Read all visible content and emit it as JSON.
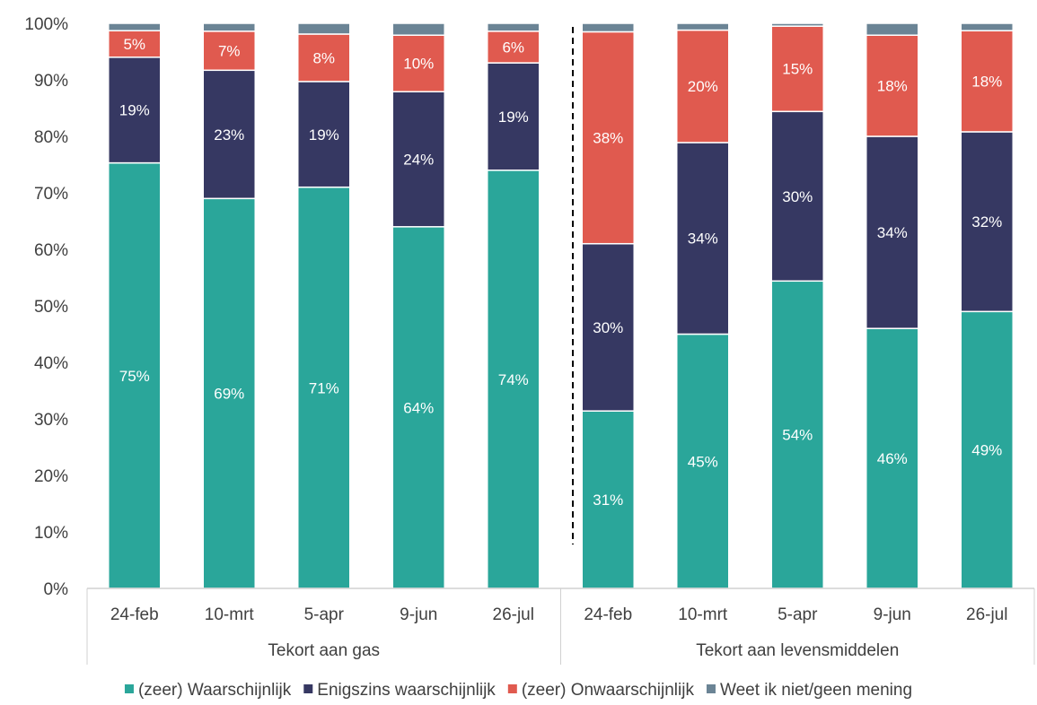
{
  "chart_data": {
    "type": "bar",
    "stacked": true,
    "ylim": [
      0,
      100
    ],
    "yticks": [
      0,
      10,
      20,
      30,
      40,
      50,
      60,
      70,
      80,
      90,
      100
    ],
    "ytick_labels": [
      "0%",
      "10%",
      "20%",
      "30%",
      "40%",
      "50%",
      "60%",
      "70%",
      "80%",
      "90%",
      "100%"
    ],
    "grid": false,
    "legend_position": "bottom",
    "groups": [
      {
        "label": "Tekort aan gas",
        "categories": [
          "24-feb",
          "10-mrt",
          "5-apr",
          "9-jun",
          "26-jul"
        ],
        "series": [
          {
            "values": [
              75.3,
              69,
              71,
              64,
              74
            ]
          },
          {
            "values": [
              18.7,
              22.7,
              18.7,
              23.9,
              19
            ]
          },
          {
            "values": [
              4.7,
              6.9,
              8.4,
              10,
              5.6
            ]
          },
          {
            "values": [
              1.3,
              1.4,
              1.9,
              2.1,
              1.4
            ]
          }
        ],
        "labels": [
          [
            "75%",
            "69%",
            "71%",
            "64%",
            "74%"
          ],
          [
            "19%",
            "23%",
            "19%",
            "24%",
            "19%"
          ],
          [
            "5%",
            "7%",
            "8%",
            "10%",
            "6%"
          ],
          [
            "",
            "",
            "",
            "",
            ""
          ]
        ]
      },
      {
        "label": "Tekort aan levensmiddelen",
        "categories": [
          "24-feb",
          "10-mrt",
          "5-apr",
          "9-jun",
          "26-jul"
        ],
        "series": [
          {
            "values": [
              31.4,
              45,
              54.4,
              46,
              49
            ]
          },
          {
            "values": [
              29.6,
              33.9,
              30,
              34,
              31.8
            ]
          },
          {
            "values": [
              37.5,
              19.9,
              15.1,
              17.9,
              17.9
            ]
          },
          {
            "values": [
              1.5,
              1.2,
              0.5,
              2.1,
              1.3
            ]
          }
        ],
        "labels": [
          [
            "31%",
            "45%",
            "54%",
            "46%",
            "49%"
          ],
          [
            "30%",
            "34%",
            "30%",
            "34%",
            "32%"
          ],
          [
            "38%",
            "20%",
            "15%",
            "18%",
            "18%"
          ],
          [
            "",
            "",
            "",
            "",
            ""
          ]
        ]
      }
    ],
    "legend": [
      {
        "name": "(zeer) Waarschijnlijk",
        "color": "#2aa69a"
      },
      {
        "name": "Enigszins waarschijnlijk",
        "color": "#363862"
      },
      {
        "name": "(zeer) Onwaarschijnlijk",
        "color": "#e05a4f"
      },
      {
        "name": "Weet ik niet/geen mening",
        "color": "#6b8495"
      }
    ]
  }
}
